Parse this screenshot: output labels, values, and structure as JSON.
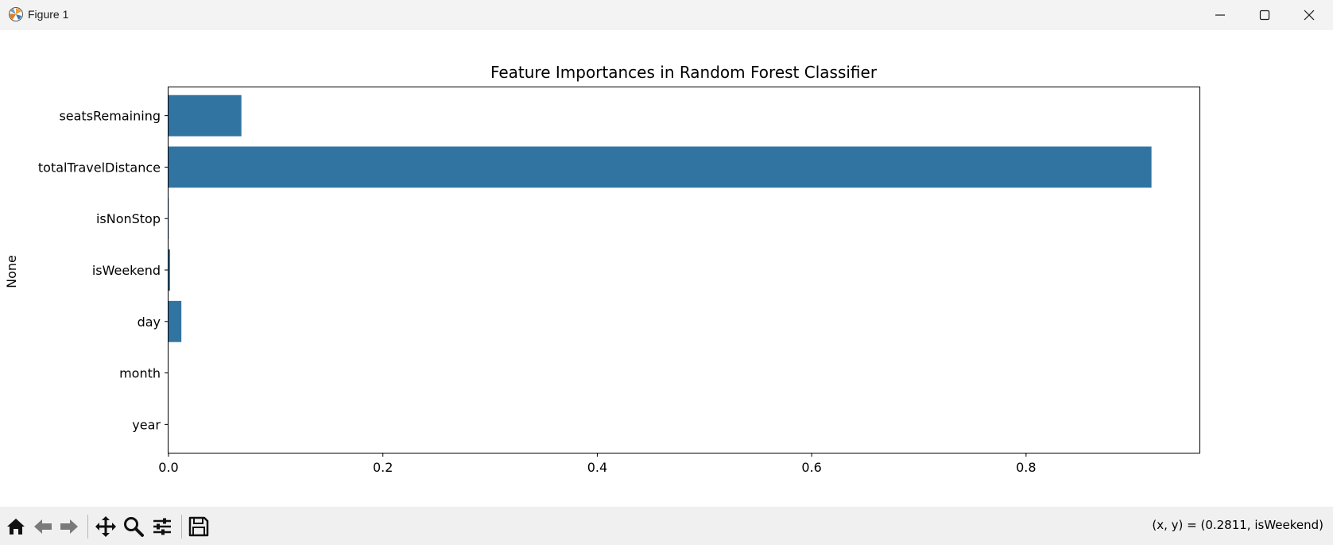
{
  "window": {
    "title": "Figure 1"
  },
  "toolbar": {
    "buttons": [
      {
        "name": "home-icon",
        "tooltip": "Home"
      },
      {
        "name": "back-icon",
        "tooltip": "Back"
      },
      {
        "name": "forward-icon",
        "tooltip": "Forward"
      },
      {
        "name": "pan-icon",
        "tooltip": "Pan"
      },
      {
        "name": "zoom-icon",
        "tooltip": "Zoom"
      },
      {
        "name": "subplots-icon",
        "tooltip": "Subplots"
      },
      {
        "name": "save-icon",
        "tooltip": "Save"
      }
    ],
    "coords_text": "(x, y) = (0.2811, isWeekend)"
  },
  "chart_data": {
    "type": "bar",
    "orientation": "horizontal",
    "title": "Feature Importances in Random Forest Classifier",
    "xlabel": "",
    "ylabel": "None",
    "categories": [
      "seatsRemaining",
      "totalTravelDistance",
      "isNonStop",
      "isWeekend",
      "day",
      "month",
      "year"
    ],
    "values": [
      0.068,
      0.917,
      0.0002,
      0.0015,
      0.012,
      0.0,
      0.0
    ],
    "xlim": [
      0,
      0.9625
    ],
    "xticks": [
      0.0,
      0.2,
      0.4,
      0.6,
      0.8
    ],
    "xtick_labels": [
      "0.0",
      "0.2",
      "0.4",
      "0.6",
      "0.8"
    ],
    "bar_color": "#3274a1",
    "grid": false
  }
}
